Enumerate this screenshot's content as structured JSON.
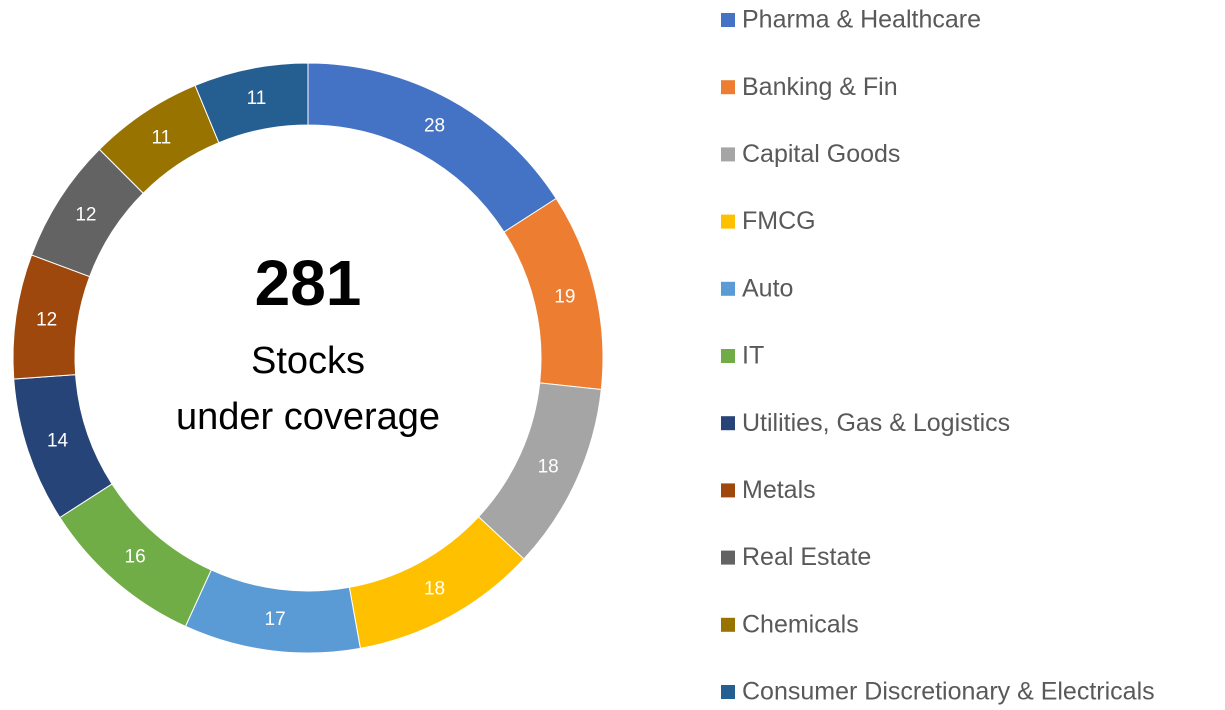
{
  "chart_data": {
    "type": "donut",
    "center_value": 281,
    "center_text": [
      "Stocks",
      "under coverage"
    ],
    "categories": [
      "Pharma & Healthcare",
      "Banking & Fin",
      "Capital Goods",
      "FMCG",
      "Auto",
      "IT",
      "Utilities, Gas & Logistics",
      "Metals",
      "Real Estate",
      "Chemicals",
      "Consumer Discretionary & Electricals"
    ],
    "values": [
      28,
      19,
      18,
      18,
      17,
      16,
      14,
      12,
      12,
      11,
      11
    ],
    "colors": [
      "#4472c4",
      "#ed7d31",
      "#a5a5a5",
      "#ffc000",
      "#5b9bd5",
      "#70ad47",
      "#264478",
      "#9e480e",
      "#636363",
      "#997300",
      "#255e91"
    ],
    "legend": "right"
  }
}
